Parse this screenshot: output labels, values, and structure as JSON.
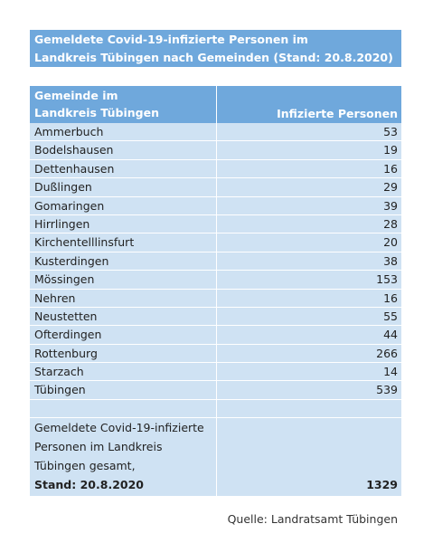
{
  "title": {
    "line1": "Gemeldete Covid-19-infizierte Personen im",
    "line2": "Landkreis Tübingen nach Gemeinden (Stand: 20.8.2020)"
  },
  "table": {
    "header": {
      "col1_line1": "Gemeinde im",
      "col1_line2": "Landkreis Tübingen",
      "col2": "Infizierte Personen"
    },
    "rows": [
      {
        "name": "Ammerbuch",
        "value": "53"
      },
      {
        "name": "Bodelshausen",
        "value": "19"
      },
      {
        "name": "Dettenhausen",
        "value": "16"
      },
      {
        "name": "Dußlingen",
        "value": "29"
      },
      {
        "name": "Gomaringen",
        "value": "39"
      },
      {
        "name": "Hirrlingen",
        "value": "28"
      },
      {
        "name": "Kirchentelllinsfurt",
        "value": "20"
      },
      {
        "name": "Kusterdingen",
        "value": "38"
      },
      {
        "name": "Mössingen",
        "value": "153"
      },
      {
        "name": "Nehren",
        "value": "16"
      },
      {
        "name": "Neustetten",
        "value": "55"
      },
      {
        "name": "Ofterdingen",
        "value": "44"
      },
      {
        "name": "Rottenburg",
        "value": "266"
      },
      {
        "name": "Starzach",
        "value": "14"
      },
      {
        "name": "Tübingen",
        "value": "539"
      }
    ],
    "total": {
      "line1": "Gemeldete Covid-19-infizierte",
      "line2": "Personen im Landkreis",
      "line3": "Tübingen gesamt,",
      "line4": "Stand: 20.8.2020",
      "value": "1329"
    }
  },
  "source": "Quelle: Landratsamt Tübingen",
  "colors": {
    "header_bg": "#6fa8dc",
    "row_bg": "#cfe2f3"
  }
}
